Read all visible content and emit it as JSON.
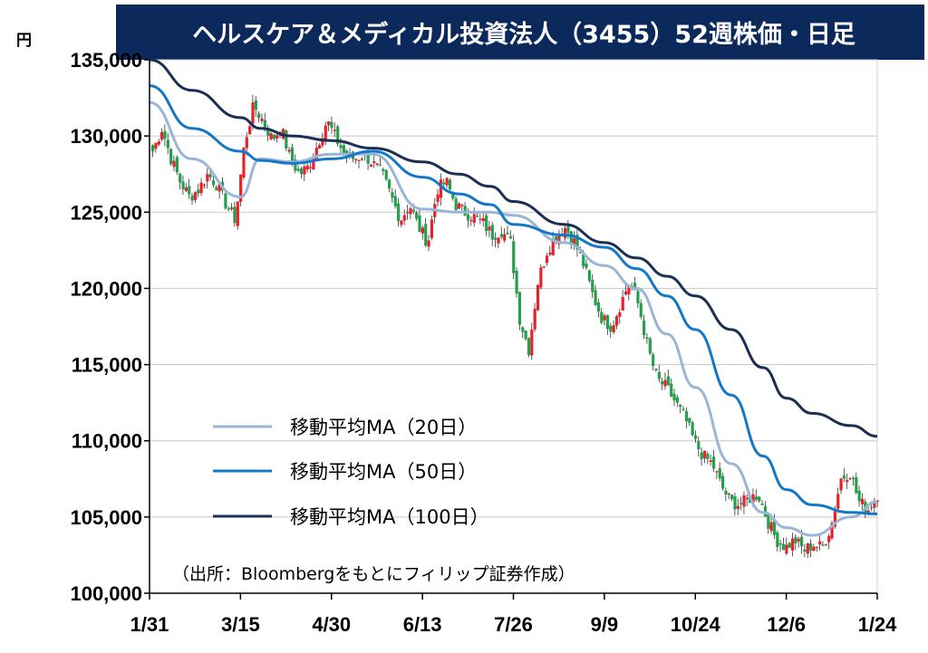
{
  "chart_data": {
    "type": "line",
    "title": "ヘルスケア＆メディカル投資法人（3455）52週株価・日足",
    "unit": "円",
    "source": "（出所：Bloombergをもとにフィリップ証券作成）",
    "ylim": [
      100000,
      135000
    ],
    "yticks": [
      "100,000",
      "105,000",
      "110,000",
      "115,000",
      "120,000",
      "125,000",
      "130,000",
      "135,000"
    ],
    "xticks": [
      "1/31",
      "3/15",
      "4/30",
      "6/13",
      "7/26",
      "9/9",
      "10/24",
      "12/6",
      "1/24"
    ],
    "grid": true,
    "legend_position": "lower-left",
    "colors": {
      "title_bg": "#0b2a5b",
      "up": "#e8212a",
      "down": "#22a04a",
      "ma20": "#9bb5d6",
      "ma50": "#1478c8",
      "ma100": "#1b2f55",
      "grid": "#c8c8c8"
    },
    "series": [
      {
        "name": "移動平均MA（20日）",
        "color": "#9bb5d6",
        "x": [
          "1/31",
          "2/20",
          "3/15",
          "3/25",
          "4/10",
          "4/30",
          "5/20",
          "6/13",
          "6/30",
          "7/15",
          "7/26",
          "8/20",
          "9/9",
          "9/25",
          "10/10",
          "10/24",
          "11/10",
          "11/25",
          "12/6",
          "12/20",
          "1/10",
          "1/24"
        ],
        "values": [
          132200,
          128500,
          126000,
          128500,
          128300,
          128800,
          128800,
          125200,
          125000,
          125000,
          124800,
          123000,
          121500,
          120000,
          117000,
          113500,
          108500,
          105300,
          104300,
          103800,
          105000,
          106000
        ]
      },
      {
        "name": "移動平均MA（50日）",
        "color": "#1478c8",
        "x": [
          "1/31",
          "2/20",
          "3/15",
          "3/25",
          "4/10",
          "4/30",
          "5/20",
          "6/13",
          "6/30",
          "7/15",
          "7/26",
          "8/20",
          "9/9",
          "9/25",
          "10/10",
          "10/24",
          "11/10",
          "11/25",
          "12/6",
          "12/20",
          "1/10",
          "1/24"
        ],
        "values": [
          133300,
          130500,
          129000,
          128400,
          128200,
          128500,
          129000,
          127300,
          126200,
          125500,
          124200,
          123500,
          122700,
          121300,
          119500,
          117300,
          113000,
          109000,
          106800,
          105800,
          105300,
          105200
        ]
      },
      {
        "name": "移動平均MA（100日）",
        "color": "#1b2f55",
        "x": [
          "1/31",
          "2/20",
          "3/15",
          "3/25",
          "4/10",
          "4/30",
          "5/20",
          "6/13",
          "6/30",
          "7/15",
          "7/26",
          "8/20",
          "9/9",
          "9/25",
          "10/10",
          "10/24",
          "11/10",
          "11/25",
          "12/6",
          "12/20",
          "1/10",
          "1/24"
        ],
        "values": [
          135000,
          133000,
          131200,
          130500,
          130000,
          129700,
          129200,
          128300,
          127500,
          126700,
          125700,
          124200,
          123000,
          122000,
          120800,
          119500,
          117300,
          114800,
          112800,
          111800,
          111000,
          110300
        ]
      }
    ],
    "candles": {
      "x_start": "1/31",
      "x_end": "1/24",
      "count": 80,
      "close_path": [
        129000,
        130500,
        128500,
        127000,
        126000,
        126500,
        127500,
        126800,
        125500,
        124500,
        129500,
        132000,
        131000,
        129800,
        130500,
        128500,
        127500,
        128000,
        129500,
        131000,
        129800,
        128700,
        128500,
        128800,
        128200,
        127500,
        126000,
        124500,
        125500,
        124000,
        123000,
        126500,
        127000,
        125500,
        125000,
        124700,
        124300,
        123500,
        123800,
        123000,
        118000,
        116000,
        120500,
        122500,
        123500,
        124000,
        123000,
        121500,
        119500,
        118000,
        117500,
        119000,
        120500,
        118800,
        116000,
        114000,
        113500,
        112500,
        111500,
        110000,
        109000,
        108500,
        107000,
        106000,
        105800,
        106200,
        106500,
        104800,
        103500,
        103000,
        103500,
        102800,
        103200,
        103000,
        104500,
        107500,
        108000,
        106000,
        105500,
        106500
      ]
    }
  },
  "legend": [
    {
      "label": "移動平均MA（20日）"
    },
    {
      "label": "移動平均MA（50日）"
    },
    {
      "label": "移動平均MA（100日）"
    }
  ]
}
